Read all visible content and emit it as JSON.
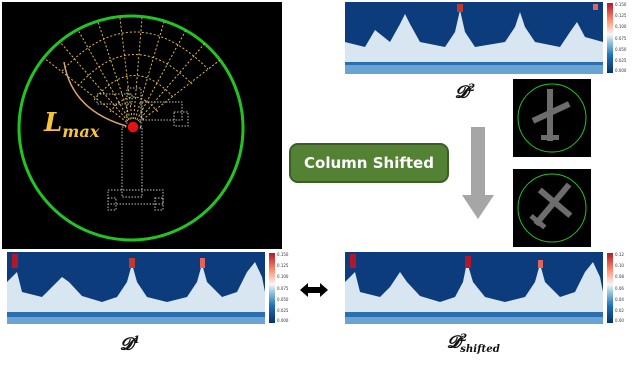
{
  "labels": {
    "lmax_main": "L",
    "lmax_sub": "max",
    "d2_main": "𝓓",
    "d2_sup": "2",
    "d1_main": "𝓓",
    "d1_sup": "1",
    "d2s_main": "𝓓",
    "d2s_sup": "2",
    "d2s_sub": "shifted"
  },
  "button": {
    "label": "Column Shifted"
  },
  "colorbars": {
    "top_right": [
      "0.150",
      "0.125",
      "0.100",
      "0.075",
      "0.050",
      "0.025",
      "0.000"
    ],
    "bottom_left": [
      "0.150",
      "0.125",
      "0.100",
      "0.075",
      "0.050",
      "0.025",
      "0.000"
    ],
    "bottom_right": [
      "0.12",
      "0.10",
      "0.08",
      "0.06",
      "0.04",
      "0.02",
      "0.00"
    ]
  },
  "colors": {
    "circle": "#22c322",
    "rays": "#e0b84a",
    "point": "#e81010",
    "arc": "#d9a36a",
    "button_bg": "#548235",
    "arrow": "#a6a6a6",
    "heat_bg": "#0d3c7c"
  }
}
